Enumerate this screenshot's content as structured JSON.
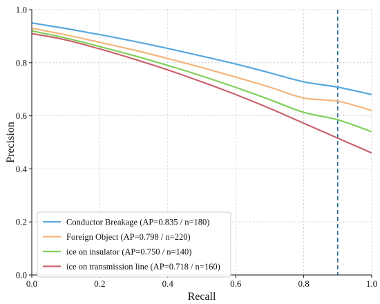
{
  "chart_data": {
    "type": "line",
    "xlabel": "Recall",
    "ylabel": "Precision",
    "xlim": [
      0,
      1
    ],
    "ylim": [
      0,
      1
    ],
    "xticks": [
      "0.0",
      "0.2",
      "0.4",
      "0.6",
      "0.8",
      "1.0"
    ],
    "yticks": [
      "0.0",
      "0.2",
      "0.4",
      "0.6",
      "0.8",
      "1.0"
    ],
    "grid": true,
    "legend_position": "lower-left",
    "reference_line": {
      "x": 0.9,
      "color": "#2b6f98",
      "style": "dashed"
    },
    "x": [
      0.0,
      0.1,
      0.2,
      0.3,
      0.4,
      0.5,
      0.6,
      0.7,
      0.8,
      0.9,
      1.0
    ],
    "series": [
      {
        "name": "Conductor Breakage (AP=0.835 / n=180)",
        "color": "#56a8dd",
        "values": [
          0.95,
          0.929,
          0.906,
          0.881,
          0.854,
          0.825,
          0.795,
          0.762,
          0.728,
          0.708,
          0.68
        ]
      },
      {
        "name": "Foreign Object (AP=0.798 / n=220)",
        "color": "#f5b47c",
        "values": [
          0.93,
          0.905,
          0.877,
          0.848,
          0.816,
          0.782,
          0.746,
          0.708,
          0.667,
          0.655,
          0.62
        ]
      },
      {
        "name": "ice on insulator (AP=0.750 / n=140)",
        "color": "#7fd05a",
        "values": [
          0.92,
          0.893,
          0.861,
          0.827,
          0.79,
          0.75,
          0.707,
          0.661,
          0.613,
          0.585,
          0.54
        ]
      },
      {
        "name": "ice on transmission line (AP=0.718 / n=160)",
        "color": "#c9646f",
        "values": [
          0.91,
          0.886,
          0.852,
          0.814,
          0.773,
          0.728,
          0.68,
          0.628,
          0.572,
          0.516,
          0.46
        ]
      }
    ]
  }
}
